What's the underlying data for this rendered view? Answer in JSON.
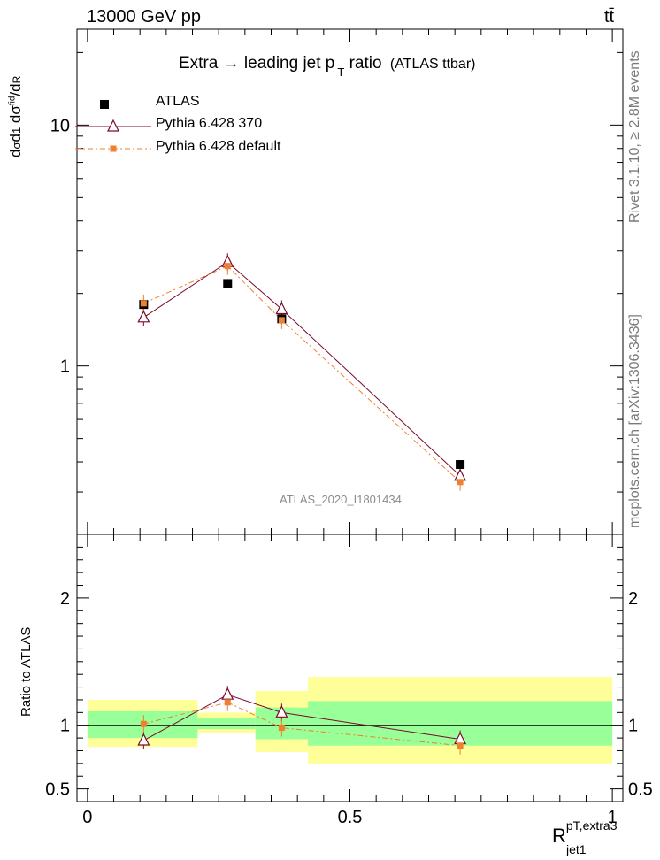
{
  "header": {
    "energy_label": "13000 GeV pp",
    "process_label": "tt̄"
  },
  "side_labels": {
    "rivet": "Rivet 3.1.10, ≥ 2.8M events",
    "mcplots": "mcplots.cern.ch [arXiv:1306.3436]"
  },
  "chart_data": [
    {
      "type": "line",
      "panel": "main",
      "title": "Extra → leading jet p",
      "title_sub": "T",
      "title_tail": " ratio",
      "title_note": "(ATLAS ttbar)",
      "watermark": "ATLAS_2020_I1801434",
      "ylabel": "dσ/dR normalized",
      "yscale": "log",
      "ylim": [
        0.2,
        25
      ],
      "xlim": [
        -0.02,
        1.02
      ],
      "y_ticks": [
        1,
        10
      ],
      "y_tick_labels": [
        "1",
        "10"
      ],
      "legend_position": "top-left",
      "x": [
        0.107,
        0.267,
        0.37,
        0.71
      ],
      "series": [
        {
          "name": "ATLAS",
          "color": "#000000",
          "marker": "square",
          "values": [
            1.8,
            2.2,
            1.57,
            0.39
          ]
        },
        {
          "name": "Pythia 6.428 370",
          "color": "#7a0a2a",
          "marker": "triangle-open",
          "values": [
            1.59,
            2.7,
            1.72,
            0.35
          ]
        },
        {
          "name": "Pythia 6.428 default",
          "color": "#f07f2f",
          "marker": "square-small",
          "dashed": true,
          "values": [
            1.82,
            2.6,
            1.55,
            0.33
          ]
        }
      ]
    },
    {
      "type": "line",
      "panel": "ratio",
      "ylabel": "Ratio to ATLAS",
      "xlabel": "R",
      "xlabel_sup": "pT,extra3",
      "xlabel_sub": "jet1",
      "ylim": [
        0.4,
        2.5
      ],
      "xlim": [
        -0.02,
        1.02
      ],
      "y_ticks": [
        0.5,
        1,
        2
      ],
      "y_tick_labels": [
        "0.5",
        "1",
        "2"
      ],
      "x_ticks": [
        0,
        0.5,
        1
      ],
      "x_tick_labels": [
        "0",
        "0.5",
        "1"
      ],
      "bins": [
        {
          "lo": 0.0,
          "hi": 0.21,
          "band_inner": [
            0.9,
            1.11
          ],
          "band_outer": [
            0.83,
            1.2
          ]
        },
        {
          "lo": 0.21,
          "hi": 0.32,
          "band_inner": [
            0.97,
            1.06
          ],
          "band_outer": [
            0.94,
            1.1
          ]
        },
        {
          "lo": 0.32,
          "hi": 0.42,
          "band_inner": [
            0.89,
            1.14
          ],
          "band_outer": [
            0.79,
            1.27
          ]
        },
        {
          "lo": 0.42,
          "hi": 1.0,
          "band_inner": [
            0.84,
            1.19
          ],
          "band_outer": [
            0.7,
            1.38
          ]
        }
      ],
      "x": [
        0.107,
        0.267,
        0.37,
        0.71
      ],
      "series": [
        {
          "name": "Pythia 6.428 370",
          "color": "#7a0a2a",
          "marker": "triangle-open",
          "values": [
            0.88,
            1.24,
            1.1,
            0.89
          ]
        },
        {
          "name": "Pythia 6.428 default",
          "color": "#f07f2f",
          "marker": "square-small",
          "dashed": true,
          "values": [
            1.01,
            1.18,
            0.98,
            0.84
          ]
        }
      ]
    }
  ]
}
